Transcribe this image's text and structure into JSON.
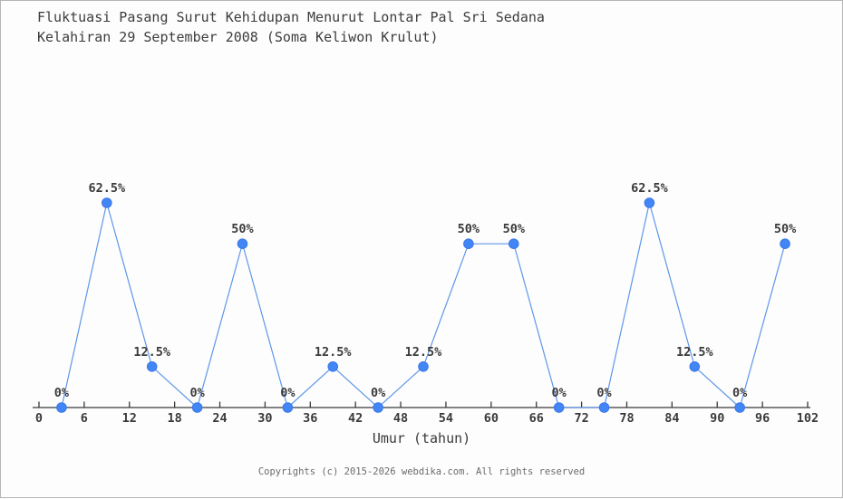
{
  "page": {
    "title_line1": "Fluktuasi Pasang Surut Kehidupan Menurut Lontar Pal Sri Sedana",
    "title_line2": "Kelahiran 29 September 2008 (Soma Keliwon Krulut)",
    "x_axis_label": "Umur (tahun)",
    "footer": "Copyrights (c) 2015-2026 webdika.com. All rights reserved"
  },
  "colors": {
    "marker": "#4285f4",
    "marker_edge": "#3b78e7",
    "line": "#5e97e8",
    "axis": "#3a3a3a",
    "label": "#3a3a3a",
    "footer": "#6b6b6b",
    "background": "#fdfdfd",
    "border": "#b5b5b5"
  },
  "chart_data": {
    "type": "line",
    "title": "Fluktuasi Pasang Surut Kehidupan Menurut Lontar Pal Sri Sedana Kelahiran 29 September 2008 (Soma Keliwon Krulut)",
    "xlabel": "Umur (tahun)",
    "ylabel": "",
    "x": [
      3,
      9,
      15,
      21,
      27,
      33,
      39,
      45,
      51,
      57,
      63,
      69,
      75,
      81,
      87,
      93,
      99
    ],
    "values": [
      0,
      62.5,
      12.5,
      0,
      50,
      0,
      12.5,
      0,
      12.5,
      50,
      50,
      0,
      0,
      62.5,
      12.5,
      0,
      50
    ],
    "point_labels": [
      "0%",
      "62.5%",
      "12.5%",
      "0%",
      "50%",
      "0%",
      "12.5%",
      "0%",
      "12.5%",
      "50%",
      "50%",
      "0%",
      "0%",
      "62.5%",
      "12.5%",
      "0%",
      "50%"
    ],
    "x_ticks": [
      0,
      6,
      12,
      18,
      24,
      30,
      36,
      42,
      48,
      54,
      60,
      66,
      72,
      78,
      84,
      90,
      96,
      102
    ],
    "xlim": [
      0,
      102
    ],
    "ylim": [
      0,
      100
    ],
    "grid": false,
    "legend_position": "none",
    "marker": "circle"
  }
}
